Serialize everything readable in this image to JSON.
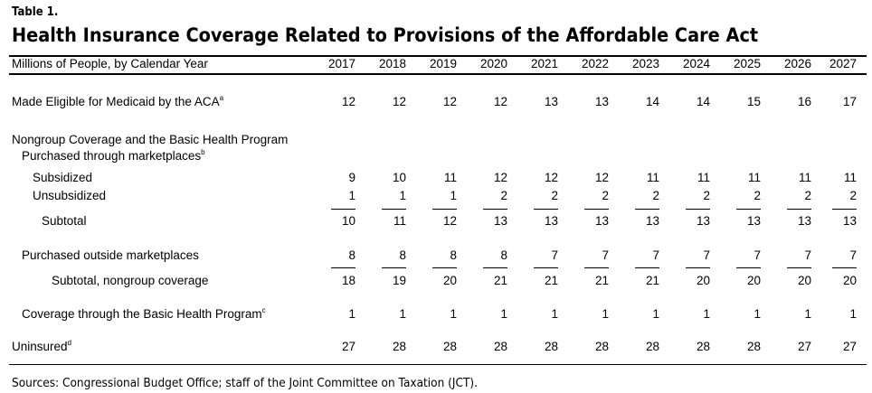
{
  "table_label": "Table 1.",
  "title": "Health Insurance Coverage Related to Provisions of the Affordable Care Act",
  "header": {
    "label": "Millions of People, by Calendar Year",
    "years": [
      "2017",
      "2018",
      "2019",
      "2020",
      "2021",
      "2022",
      "2023",
      "2024",
      "2025",
      "2026",
      "2027"
    ]
  },
  "rows": [
    {
      "label": "Made Eligible for Medicaid by the ACA",
      "note": "a",
      "values": [
        "12",
        "12",
        "12",
        "12",
        "13",
        "13",
        "14",
        "14",
        "15",
        "16",
        "17"
      ]
    },
    {
      "label": "Nongroup Coverage and the Basic Health Program",
      "note": "",
      "values": []
    },
    {
      "label": "Purchased through marketplaces",
      "note": "b",
      "values": []
    },
    {
      "label": "Subsidized",
      "note": "",
      "values": [
        "9",
        "10",
        "11",
        "12",
        "12",
        "12",
        "11",
        "11",
        "11",
        "11",
        "11"
      ]
    },
    {
      "label": "Unsubsidized",
      "note": "",
      "values": [
        "1",
        "1",
        "1",
        "2",
        "2",
        "2",
        "2",
        "2",
        "2",
        "2",
        "2"
      ]
    },
    {
      "label": "Subtotal",
      "note": "",
      "values": [
        "10",
        "11",
        "12",
        "13",
        "13",
        "13",
        "13",
        "13",
        "13",
        "13",
        "13"
      ]
    },
    {
      "label": "Purchased outside marketplaces",
      "note": "",
      "values": [
        "8",
        "8",
        "8",
        "8",
        "7",
        "7",
        "7",
        "7",
        "7",
        "7",
        "7"
      ]
    },
    {
      "label": "Subtotal, nongroup coverage",
      "note": "",
      "values": [
        "18",
        "19",
        "20",
        "21",
        "21",
        "21",
        "21",
        "20",
        "20",
        "20",
        "20"
      ]
    },
    {
      "label": "Coverage through the Basic Health Program",
      "note": "c",
      "values": [
        "1",
        "1",
        "1",
        "1",
        "1",
        "1",
        "1",
        "1",
        "1",
        "1",
        "1"
      ]
    },
    {
      "label": "Uninsured",
      "note": "d",
      "values": [
        "27",
        "28",
        "28",
        "28",
        "28",
        "28",
        "28",
        "28",
        "28",
        "27",
        "27"
      ]
    }
  ],
  "sources": "Sources: Congressional Budget Office; staff of the Joint Committee on Taxation (JCT)."
}
